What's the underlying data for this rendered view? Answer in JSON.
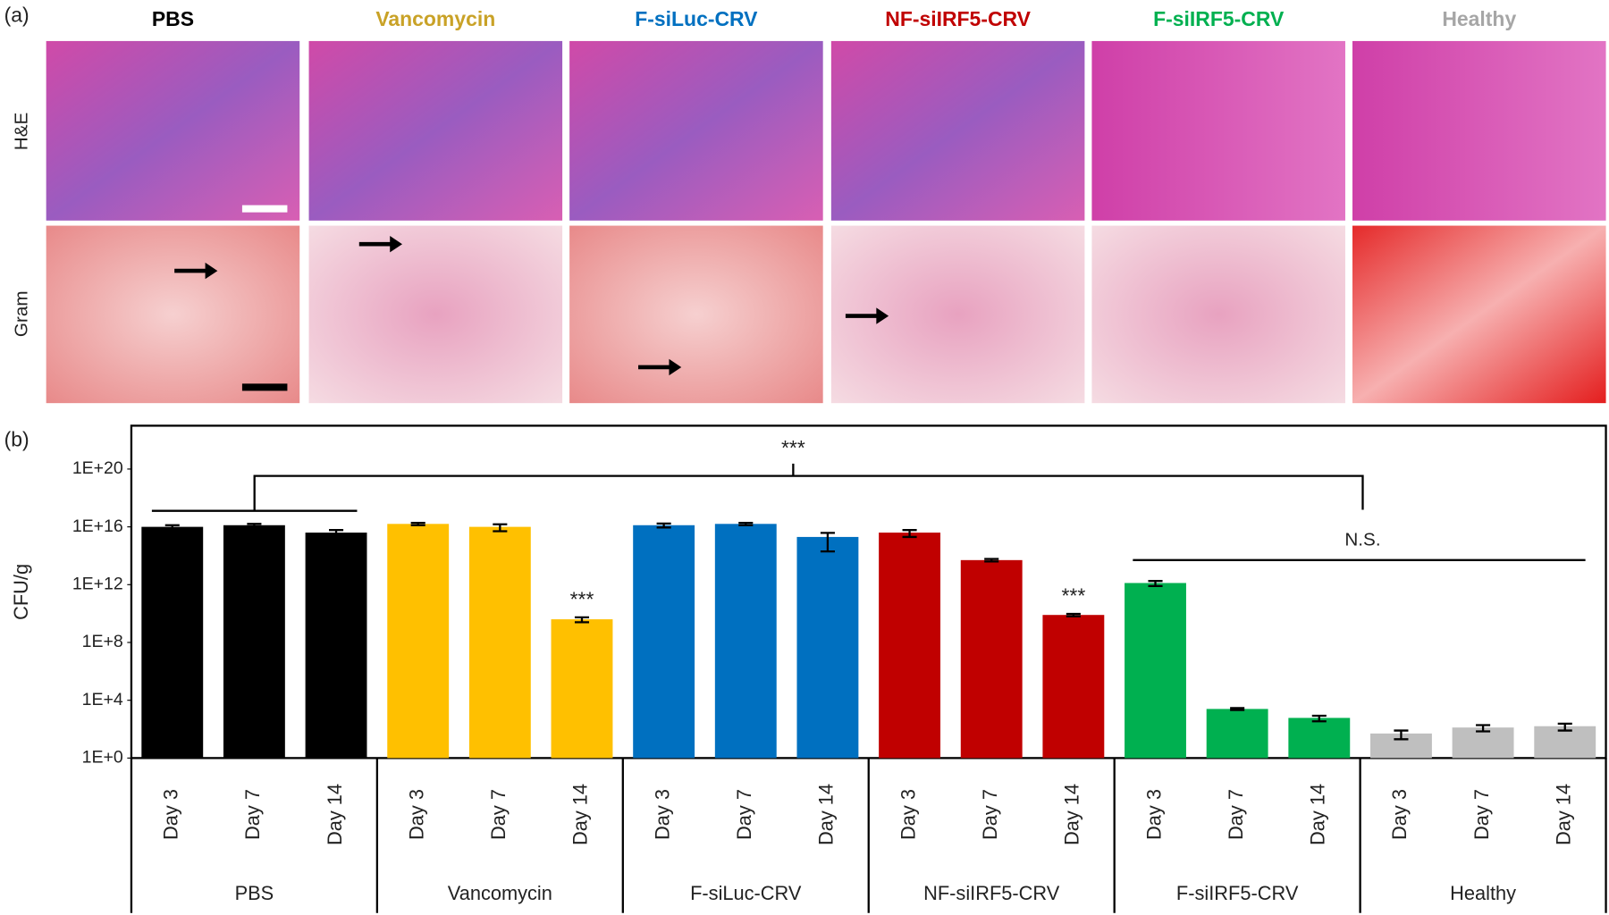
{
  "panel_a": {
    "label": "(a)",
    "rows": [
      "H&E",
      "Gram"
    ]
  },
  "chart_data": {
    "type": "bar",
    "panel_label": "(b)",
    "y_label": "CFU/g",
    "log_scale": true,
    "ylim": [
      1,
      1e+23
    ],
    "yticks": [
      {
        "value": 1,
        "label": "1E+0"
      },
      {
        "value": 10000,
        "label": "1E+4"
      },
      {
        "value": 100000000,
        "label": "1E+8"
      },
      {
        "value": 1000000000000,
        "label": "1E+12"
      },
      {
        "value": 1e+16,
        "label": "1E+16"
      },
      {
        "value": 1e+20,
        "label": "1E+20"
      }
    ],
    "annotations": [
      "***",
      "N.S."
    ],
    "groups": [
      {
        "name": "PBS",
        "color": "#000000",
        "categories": [
          "Day 3",
          "Day 7",
          "Day 14"
        ],
        "values": [
          1e+16,
          1.3e+16,
          4000000000000000.0
        ],
        "errors": [
          3000000000000000.0,
          3000000000000000.0,
          2000000000000000.0
        ]
      },
      {
        "name": "Vancomycin",
        "color": "#ffc000",
        "heading_color": "#c9a227",
        "categories": [
          "Day 3",
          "Day 7",
          "Day 14"
        ],
        "values": [
          1.6e+16,
          1e+16,
          4000000000
        ],
        "errors": [
          3000000000000000.0,
          5000000000000000.0,
          1500000000
        ],
        "significance": [
          null,
          null,
          "***"
        ]
      },
      {
        "name": "F-siLuc-CRV",
        "color": "#0070c0",
        "categories": [
          "Day 3",
          "Day 7",
          "Day 14"
        ],
        "values": [
          1.3e+16,
          1.6e+16,
          2000000000000000.0
        ],
        "errors": [
          4000000000000000.0,
          3000000000000000.0,
          1800000000000000.0
        ]
      },
      {
        "name": "NF-siIRF5-CRV",
        "color": "#c00000",
        "categories": [
          "Day 3",
          "Day 7",
          "Day 14"
        ],
        "values": [
          4000000000000000.0,
          50000000000000,
          8000000000
        ],
        "errors": [
          2000000000000000.0,
          10000000000000,
          1500000000
        ],
        "significance": [
          null,
          null,
          "***"
        ]
      },
      {
        "name": "F-siIRF5-CRV",
        "color": "#00b050",
        "categories": [
          "Day 3",
          "Day 7",
          "Day 14"
        ],
        "values": [
          1300000000000,
          2500,
          600
        ],
        "errors": [
          500000000000,
          400,
          250
        ]
      },
      {
        "name": "Healthy",
        "color": "#bfbfbf",
        "heading_color": "#a6a6a6",
        "categories": [
          "Day 3",
          "Day 7",
          "Day 14"
        ],
        "values": [
          50,
          130,
          160
        ],
        "errors": [
          30,
          60,
          80
        ]
      }
    ]
  }
}
